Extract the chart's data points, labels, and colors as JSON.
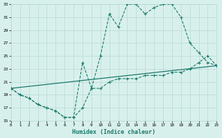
{
  "xlabel": "Humidex (Indice chaleur)",
  "bg_color": "#d8f0ec",
  "grid_color": "#b8d8d4",
  "line_color": "#1a7a6a",
  "xlim": [
    0,
    23
  ],
  "ylim": [
    15,
    33
  ],
  "xticks": [
    0,
    1,
    2,
    3,
    4,
    5,
    6,
    7,
    8,
    9,
    10,
    11,
    12,
    13,
    14,
    15,
    16,
    17,
    18,
    19,
    20,
    21,
    22,
    23
  ],
  "yticks": [
    15,
    17,
    19,
    21,
    23,
    25,
    27,
    29,
    31,
    33
  ],
  "curve1_x": [
    0,
    1,
    2,
    3,
    4,
    5,
    6,
    7,
    8,
    9,
    10,
    11,
    12,
    13,
    14,
    15,
    16,
    17,
    18,
    19,
    20,
    21,
    22,
    23
  ],
  "curve1_y": [
    20,
    19,
    18.5,
    17.5,
    17,
    16.5,
    15.5,
    15.5,
    17,
    20,
    25,
    31.5,
    29.5,
    33,
    33,
    31.5,
    32.5,
    33,
    33,
    31,
    27,
    25.5,
    24,
    23.5
  ],
  "curve2_x": [
    0,
    1,
    2,
    3,
    4,
    5,
    6,
    7,
    8,
    9,
    10,
    11,
    12,
    13,
    14,
    15,
    16,
    17,
    18,
    19,
    20,
    21,
    22,
    23
  ],
  "curve2_y": [
    20,
    19,
    18.5,
    17.5,
    17,
    16.5,
    15.5,
    15.5,
    24,
    20,
    20,
    21,
    21.5,
    21.5,
    21.5,
    22,
    22,
    22,
    22.5,
    22.5,
    23,
    24,
    25,
    23.5
  ],
  "curve3_x": [
    0,
    23
  ],
  "curve3_y": [
    20,
    23.5
  ]
}
